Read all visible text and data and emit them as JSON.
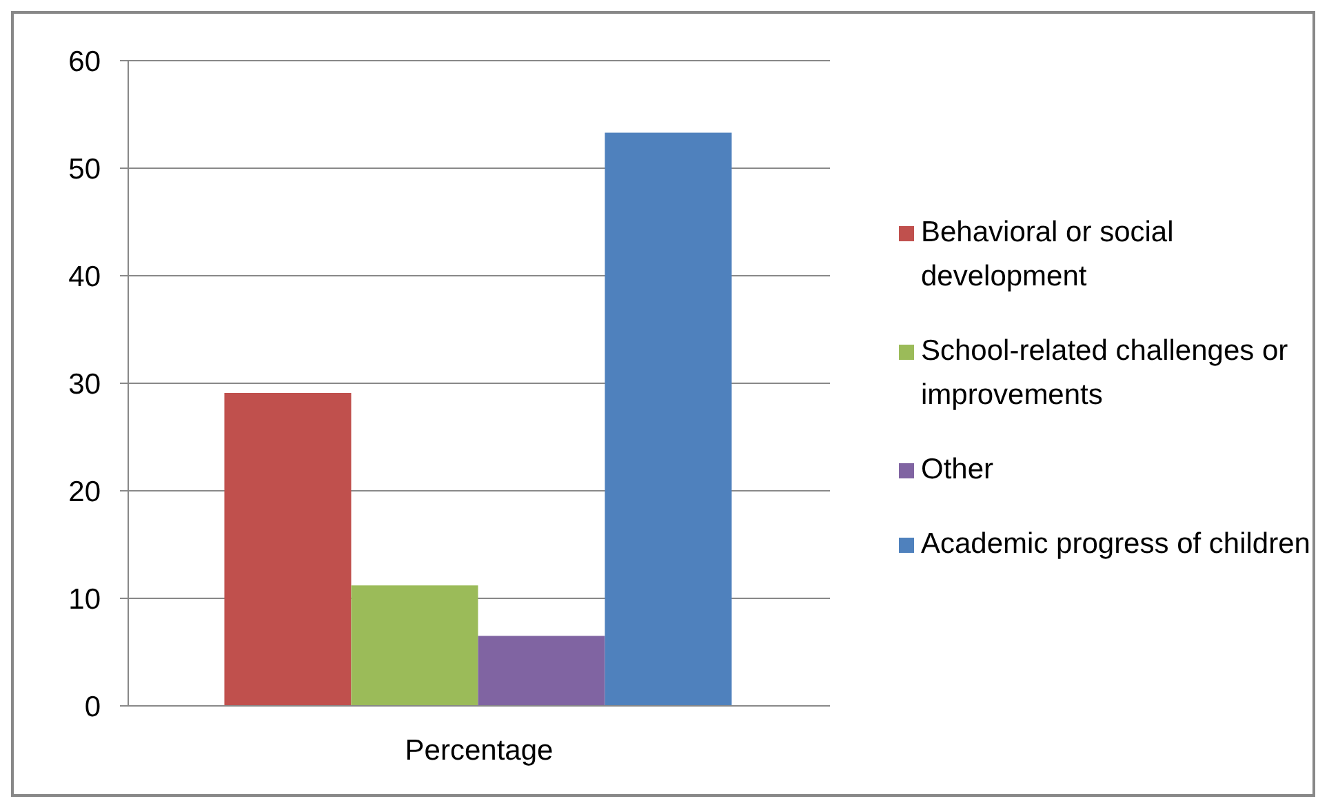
{
  "chart_data": {
    "type": "bar",
    "categories": [
      "Percentage"
    ],
    "series": [
      {
        "name": "Behavioral or social development",
        "color": "#c0504d",
        "values": [
          29.1
        ]
      },
      {
        "name": "School-related challenges or improvements",
        "color": "#9bbb59",
        "values": [
          11.2
        ]
      },
      {
        "name": "Other",
        "color": "#8064a2",
        "values": [
          6.5
        ]
      },
      {
        "name": "Academic progress of children",
        "color": "#4f81bd",
        "values": [
          53.3
        ]
      }
    ],
    "ylim": [
      0,
      60
    ],
    "yticks": [
      0,
      10,
      20,
      30,
      40,
      50,
      60
    ],
    "grid": "y",
    "legend": "right"
  }
}
